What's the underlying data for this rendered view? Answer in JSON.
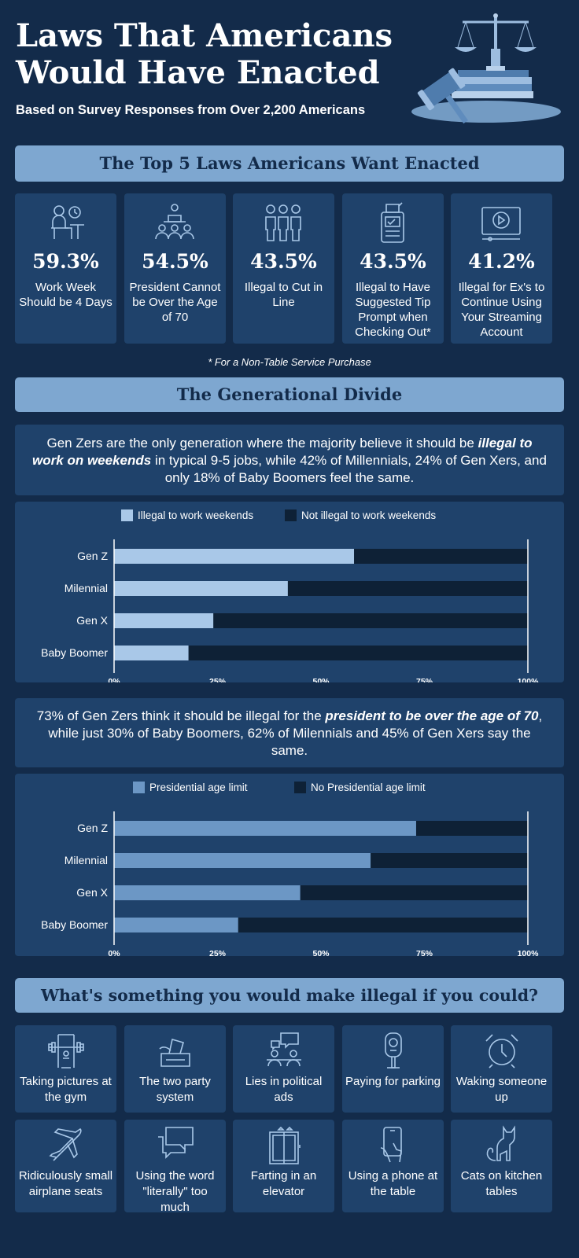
{
  "header": {
    "title": "Laws That Americans Would Have Enacted",
    "subtitle": "Based on Survey Responses from Over 2,200 Americans"
  },
  "top5": {
    "heading": "The Top 5 Laws Americans Want Enacted",
    "footnote": "*  For a Non-Table Service Purchase",
    "items": [
      {
        "value": "59.3%",
        "label": "Work Week Should be 4 Days",
        "icon": "desk-worker-icon"
      },
      {
        "value": "54.5%",
        "label": "President Cannot be Over the Age of 70",
        "icon": "podium-icon"
      },
      {
        "value": "43.5%",
        "label": "Illegal to Cut in Line",
        "icon": "queue-icon"
      },
      {
        "value": "43.5%",
        "label": "Illegal to Have Suggested Tip Prompt when Checking Out*",
        "icon": "tip-terminal-icon"
      },
      {
        "value": "41.2%",
        "label": "Illegal for Ex's to Continue Using Your Streaming Account",
        "icon": "streaming-icon"
      }
    ]
  },
  "divide": {
    "heading": "The Generational Divide",
    "intro1": {
      "before": "Gen Zers are the only generation where the majority believe it should be ",
      "emph": "illegal to work on weekends",
      "after": " in typical 9-5 jobs, while 42% of Millennials, 24% of Gen Xers, and only 18% of Baby Boomers feel the same."
    },
    "intro2": {
      "before": "73% of Gen Zers think it should be illegal for the ",
      "emph": "president to be over the age of 70",
      "after": ", while just 30% of Baby Boomers, 62% of Milennials and 45% of Gen Xers say the same."
    }
  },
  "chart_data": [
    {
      "type": "bar",
      "orientation": "horizontal",
      "stacked": true,
      "categories": [
        "Gen Z",
        "Milennial",
        "Gen X",
        "Baby Boomer"
      ],
      "series": [
        {
          "name": "Illegal to work weekends",
          "values": [
            58,
            42,
            24,
            18
          ],
          "color": "#a9c8e8"
        },
        {
          "name": "Not illegal to work weekends",
          "values": [
            42,
            58,
            76,
            82
          ],
          "color": "#0e2136"
        }
      ],
      "xticks": [
        "0%",
        "25%",
        "50%",
        "75%",
        "100%"
      ],
      "xlim": [
        0,
        100
      ],
      "legend": "top"
    },
    {
      "type": "bar",
      "orientation": "horizontal",
      "stacked": true,
      "categories": [
        "Gen Z",
        "Milennial",
        "Gen X",
        "Baby Boomer"
      ],
      "series": [
        {
          "name": "Presidential age limit",
          "values": [
            73,
            62,
            45,
            30
          ],
          "color": "#6c97c5"
        },
        {
          "name": "No Presidential age limit",
          "values": [
            27,
            38,
            55,
            70
          ],
          "color": "#0e2136"
        }
      ],
      "xticks": [
        "0%",
        "25%",
        "50%",
        "75%",
        "100%"
      ],
      "xlim": [
        0,
        100
      ],
      "legend": "top"
    }
  ],
  "question": {
    "heading": "What's something you would make illegal if you could?",
    "items": [
      {
        "label": "Taking pictures at the gym",
        "icon": "gym-icon"
      },
      {
        "label": "The two party system",
        "icon": "ballot-box-icon"
      },
      {
        "label": "Lies in political ads",
        "icon": "debate-icon"
      },
      {
        "label": "Paying for parking",
        "icon": "parking-meter-icon"
      },
      {
        "label": "Waking someone up",
        "icon": "alarm-clock-icon"
      },
      {
        "label": "Ridiculously small airplane seats",
        "icon": "airplane-icon"
      },
      {
        "label": "Using the word \"literally\" too much",
        "icon": "speech-bubbles-icon"
      },
      {
        "label": "Farting in an elevator",
        "icon": "elevator-icon"
      },
      {
        "label": "Using a phone at the table",
        "icon": "phone-hand-icon"
      },
      {
        "label": "Cats on kitchen tables",
        "icon": "cat-icon"
      }
    ]
  },
  "colors": {
    "background": "#132b4a",
    "card": "#1f426b",
    "banner": "#7ea7d0",
    "dark": "#0e2136"
  }
}
